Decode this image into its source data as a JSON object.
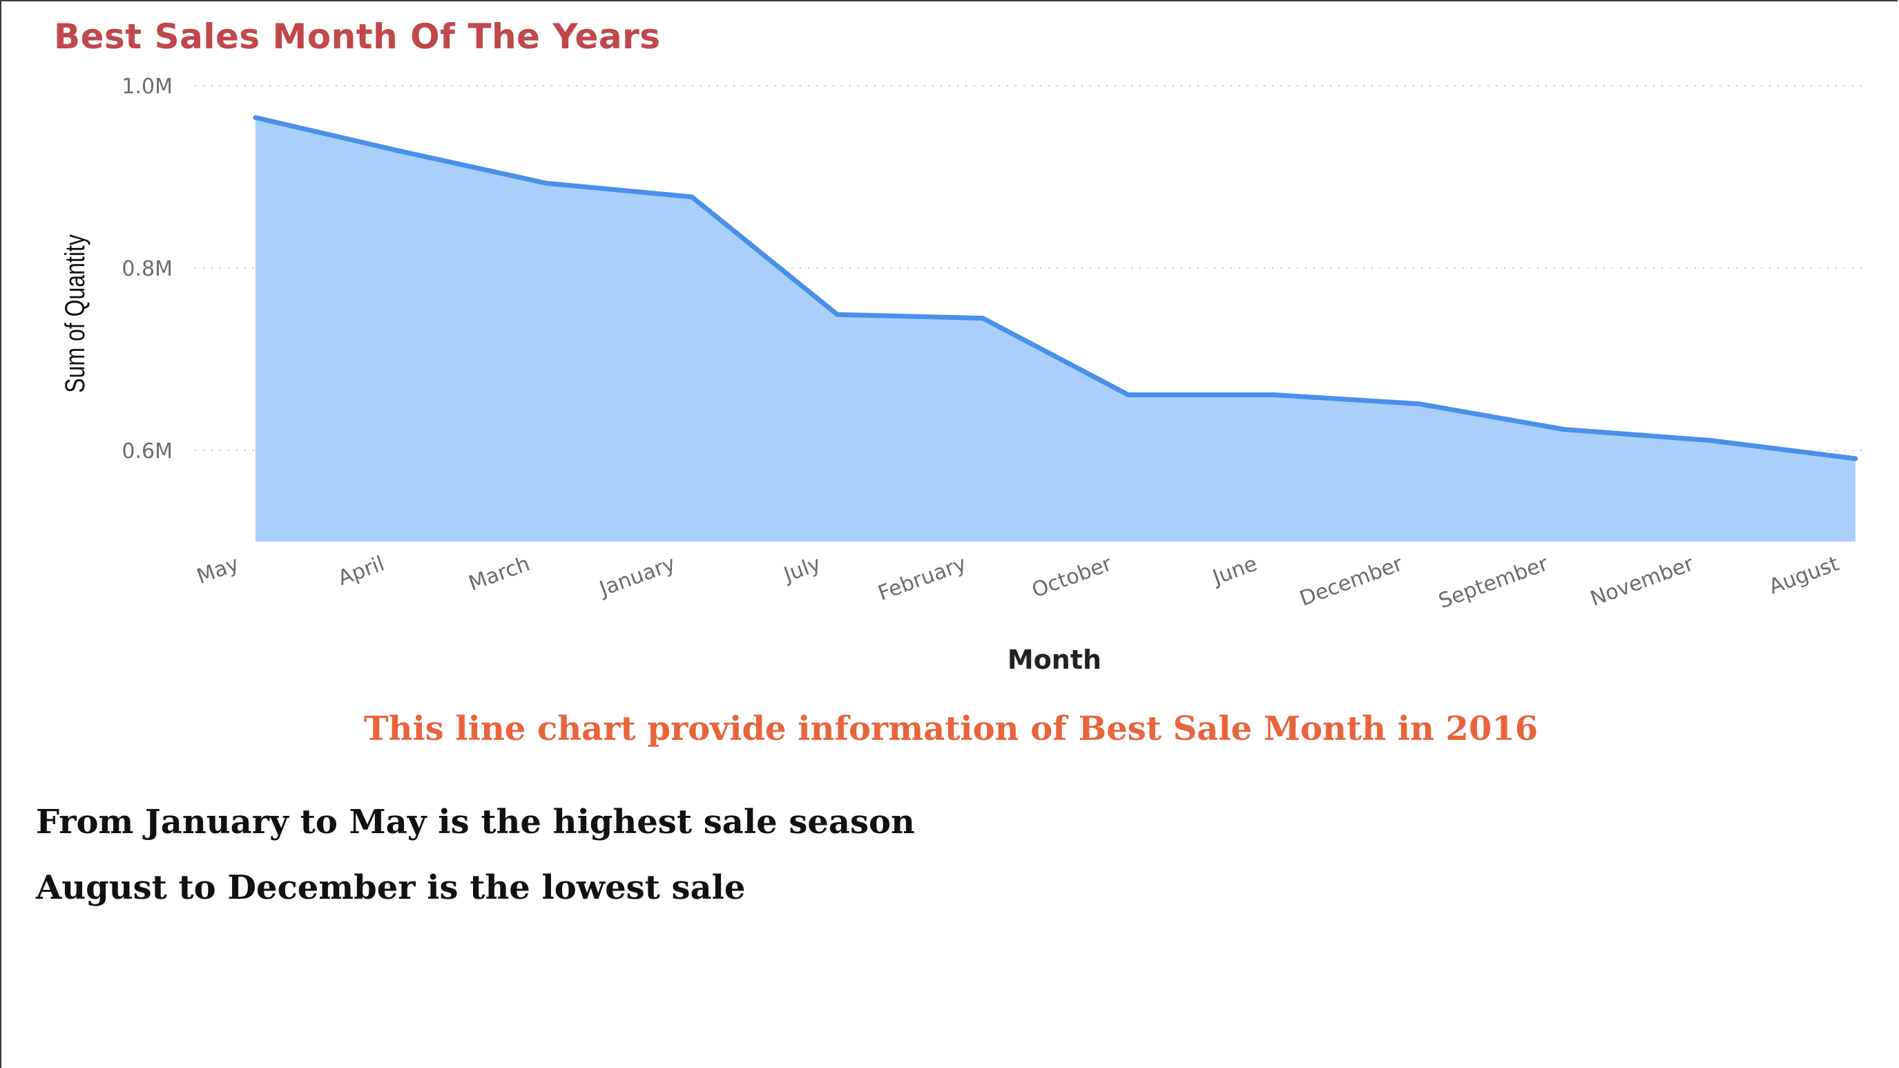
{
  "chart_data": {
    "type": "area",
    "title": "Best Sales Month Of The Years",
    "xlabel": "Month",
    "ylabel": "Sum of Quantity",
    "categories": [
      "May",
      "April",
      "March",
      "January",
      "July",
      "February",
      "October",
      "June",
      "December",
      "September",
      "November",
      "August"
    ],
    "series": [
      {
        "values": [
          965000,
          928000,
          893000,
          878000,
          749000,
          745000,
          661000,
          661000,
          651000,
          623000,
          611000,
          591000
        ]
      }
    ],
    "y_ticks": [
      {
        "value": 600000,
        "label": "0.6M"
      },
      {
        "value": 800000,
        "label": "0.8M"
      },
      {
        "value": 1000000,
        "label": "1.0M"
      }
    ],
    "ylim": [
      500000,
      1000000
    ],
    "grid": true,
    "colors": {
      "line": "#4a8fea",
      "fill": "#aacffa",
      "grid": "#c8c8c8"
    }
  },
  "caption": "This line chart provide information of Best Sale Month in 2016",
  "notes": [
    "From January to May is the highest sale season",
    "August to December is the lowest sale"
  ]
}
